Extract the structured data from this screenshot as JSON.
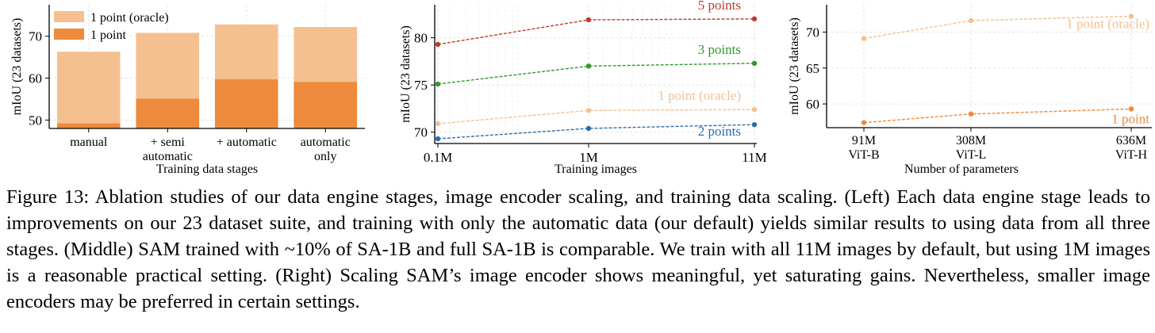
{
  "colors": {
    "oracle": "#f5c090",
    "one_point": "#ee8a3c",
    "two_points": "#2b6cb0",
    "three_points": "#2e9a2e",
    "five_points": "#c0392b",
    "axis": "#000000",
    "grid": "#dddddd"
  },
  "chart_data": [
    {
      "type": "bar",
      "xlabel": "Training data stages",
      "ylabel": "mIoU (23 datasets)",
      "ylim": [
        48,
        77.5
      ],
      "yticks": [
        50,
        60,
        70
      ],
      "categories": [
        [
          "manual"
        ],
        [
          "+ semi",
          "automatic"
        ],
        [
          "+ automatic"
        ],
        [
          "automatic",
          "only"
        ]
      ],
      "series": [
        {
          "name": "1 point (oracle)",
          "values": [
            66.3,
            70.8,
            72.8,
            72.2
          ]
        },
        {
          "name": "1 point",
          "values": [
            49.2,
            55.1,
            59.7,
            59.1
          ]
        }
      ],
      "legend": "top-left",
      "grid": true
    },
    {
      "type": "line",
      "xlabel": "Training images",
      "ylabel": "mIoU (23 datasets)",
      "ylim": [
        68.8,
        83.5
      ],
      "yticks": [
        70,
        75,
        80
      ],
      "x": [
        "0.1M",
        "1M",
        "11M"
      ],
      "series": [
        {
          "name": "5 points",
          "values": [
            79.3,
            81.9,
            82.0
          ]
        },
        {
          "name": "3 points",
          "values": [
            75.1,
            77.0,
            77.3
          ]
        },
        {
          "name": "1 point (oracle)",
          "values": [
            70.9,
            72.3,
            72.4
          ]
        },
        {
          "name": "2 points",
          "values": [
            69.3,
            70.4,
            70.8
          ]
        }
      ],
      "legend": "inline-labels-right",
      "grid": true
    },
    {
      "type": "line",
      "xlabel": "Number of parameters",
      "ylabel": "mIoU (23 datasets)",
      "ylim": [
        56.7,
        73.8
      ],
      "yticks": [
        60,
        65,
        70
      ],
      "x": [
        [
          "91M",
          "ViT-B"
        ],
        [
          "308M",
          "ViT-L"
        ],
        [
          "636M",
          "ViT-H"
        ]
      ],
      "series": [
        {
          "name": "1 point (oracle)",
          "values": [
            69.1,
            71.6,
            72.2
          ]
        },
        {
          "name": "1 point",
          "values": [
            57.4,
            58.6,
            59.3
          ]
        }
      ],
      "legend": "inline-labels-right",
      "grid": true
    }
  ],
  "caption": "Figure 13: Ablation studies of our data engine stages, image encoder scaling, and training data scaling. (Left) Each data engine stage leads to improvements on our 23 dataset suite, and training with only the automatic data (our default) yields similar results to using data from all three stages. (Middle) SAM trained with ~10% of SA-1B and full SA-1B is comparable. We train with all 11M images by default, but using 1M images is a reasonable practical setting. (Right) Scaling SAM’s image encoder shows meaningful, yet saturating gains. Nevertheless, smaller image encoders may be preferred in certain settings."
}
